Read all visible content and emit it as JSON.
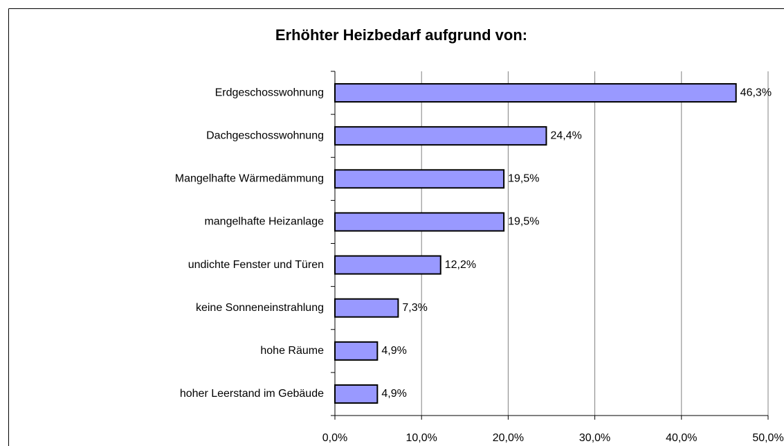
{
  "chart_data": {
    "type": "bar",
    "orientation": "horizontal",
    "title": "Erhöhter Heizbedarf aufgrund von:",
    "categories": [
      "Erdgeschosswohnung",
      "Dachgeschosswohnung",
      "Mangelhafte Wärmedämmung",
      "mangelhafte Heizanlage",
      "undichte Fenster und Türen",
      "keine Sonneneinstrahlung",
      "hohe Räume",
      "hoher Leerstand im Gebäude"
    ],
    "values": [
      46.3,
      24.4,
      19.5,
      19.5,
      12.2,
      7.3,
      4.9,
      4.9
    ],
    "value_labels": [
      "46,3%",
      "24,4%",
      "19,5%",
      "19,5%",
      "12,2%",
      "7,3%",
      "4,9%",
      "4,9%"
    ],
    "color": "#9999ff",
    "xlim": [
      0,
      50
    ],
    "xticks": [
      {
        "value": 0,
        "label": "0,0%"
      },
      {
        "value": 10,
        "label": "10,0%"
      },
      {
        "value": 20,
        "label": "20,0%"
      },
      {
        "value": 30,
        "label": "30,0%"
      },
      {
        "value": 40,
        "label": "40,0%"
      },
      {
        "value": 50,
        "label": "50,0%"
      }
    ],
    "grid": true
  }
}
